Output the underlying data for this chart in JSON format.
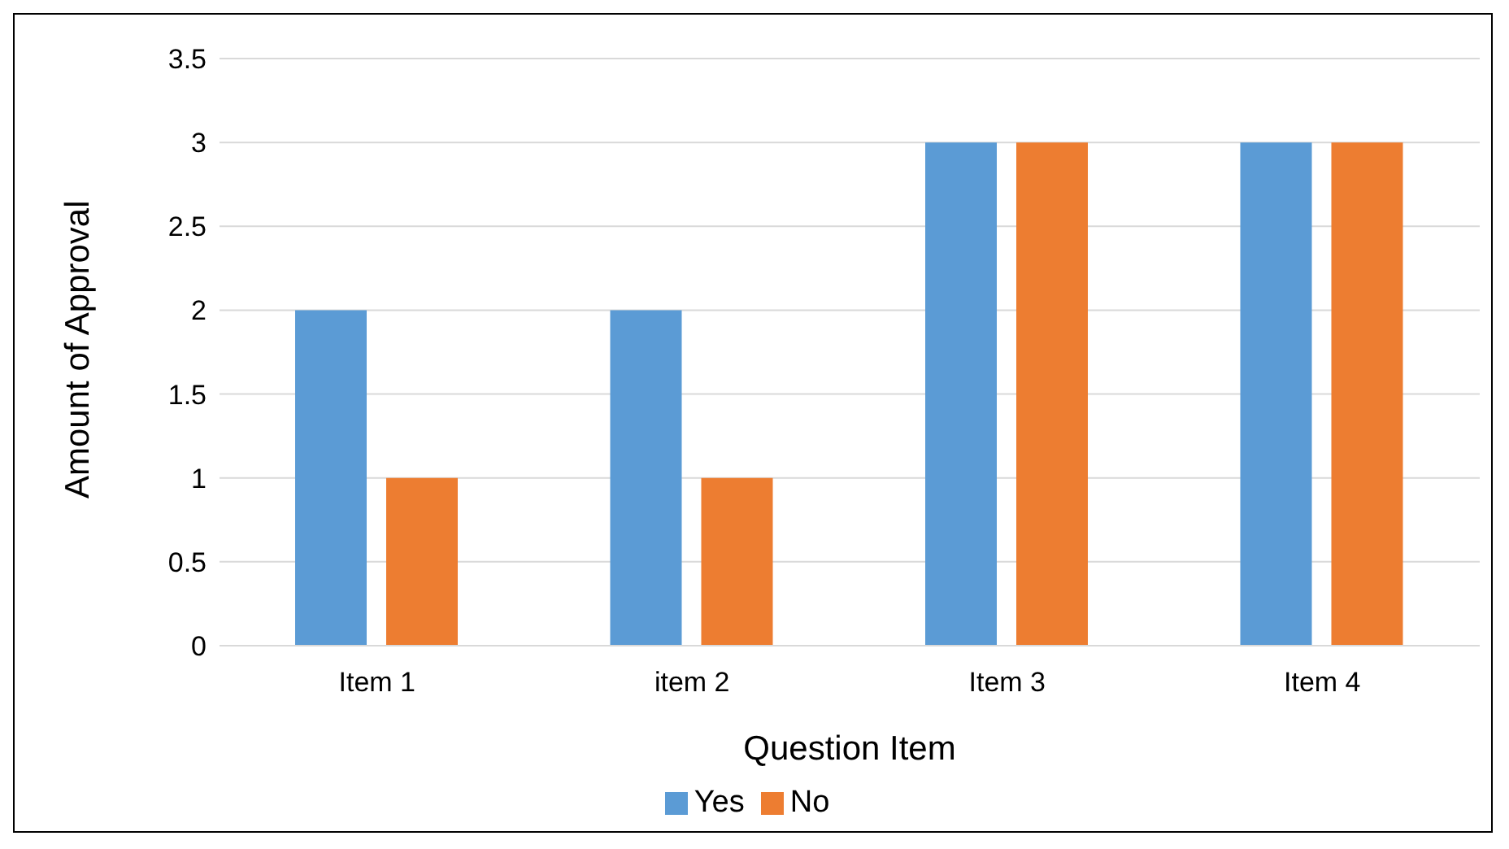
{
  "chart_data": {
    "type": "bar",
    "xlabel": "Question Item",
    "ylabel": "Amount of Approval",
    "categories": [
      "Item 1",
      "item 2",
      "Item 3",
      "Item 4"
    ],
    "series": [
      {
        "name": "Yes",
        "color": "#5b9bd5",
        "values": [
          2,
          2,
          3,
          3
        ]
      },
      {
        "name": "No",
        "color": "#ed7d31",
        "values": [
          1,
          1,
          3,
          3
        ]
      }
    ],
    "ylim": [
      0,
      3.5
    ],
    "yticks": [
      0,
      0.5,
      1,
      1.5,
      2,
      2.5,
      3,
      3.5
    ],
    "grid": "y",
    "legend": "bottom"
  }
}
